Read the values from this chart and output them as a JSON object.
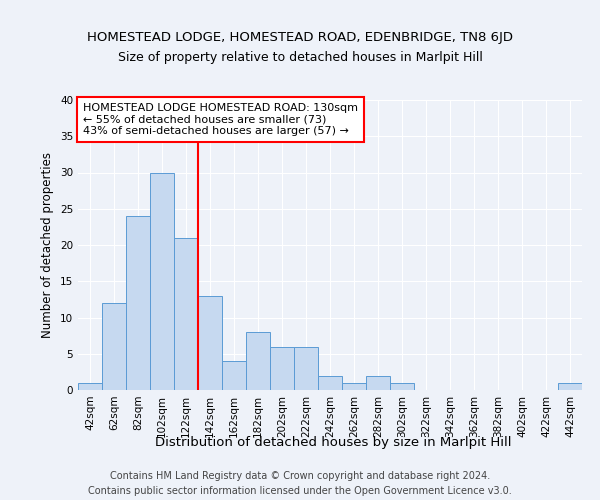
{
  "title1": "HOMESTEAD LODGE, HOMESTEAD ROAD, EDENBRIDGE, TN8 6JD",
  "title2": "Size of property relative to detached houses in Marlpit Hill",
  "xlabel": "Distribution of detached houses by size in Marlpit Hill",
  "ylabel": "Number of detached properties",
  "bins": [
    "42sqm",
    "62sqm",
    "82sqm",
    "102sqm",
    "122sqm",
    "142sqm",
    "162sqm",
    "182sqm",
    "202sqm",
    "222sqm",
    "242sqm",
    "262sqm",
    "282sqm",
    "302sqm",
    "322sqm",
    "342sqm",
    "362sqm",
    "382sqm",
    "402sqm",
    "422sqm",
    "442sqm"
  ],
  "values": [
    1,
    12,
    24,
    30,
    21,
    13,
    4,
    8,
    6,
    6,
    2,
    1,
    2,
    1,
    0,
    0,
    0,
    0,
    0,
    0,
    1
  ],
  "bar_color": "#c6d9f0",
  "bar_edge_color": "#5b9bd5",
  "ref_line_color": "red",
  "ref_line_x": 4.5,
  "annotation_text": "HOMESTEAD LODGE HOMESTEAD ROAD: 130sqm\n← 55% of detached houses are smaller (73)\n43% of semi-detached houses are larger (57) →",
  "annotation_box_color": "white",
  "annotation_box_edge": "red",
  "ylim": [
    0,
    40
  ],
  "yticks": [
    0,
    5,
    10,
    15,
    20,
    25,
    30,
    35,
    40
  ],
  "footer1": "Contains HM Land Registry data © Crown copyright and database right 2024.",
  "footer2": "Contains public sector information licensed under the Open Government Licence v3.0.",
  "bg_color": "#eef2f9",
  "grid_color": "#ffffff",
  "title1_fontsize": 9.5,
  "title2_fontsize": 9.0,
  "xlabel_fontsize": 9.5,
  "ylabel_fontsize": 8.5,
  "tick_fontsize": 7.5,
  "annot_fontsize": 8.0,
  "footer_fontsize": 7.0
}
